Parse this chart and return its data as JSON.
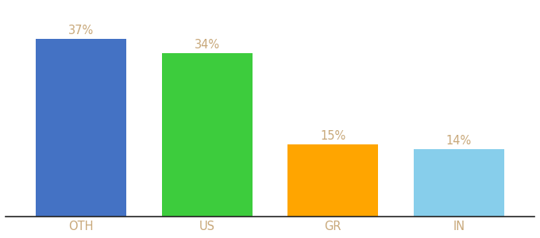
{
  "categories": [
    "OTH",
    "US",
    "GR",
    "IN"
  ],
  "values": [
    37,
    34,
    15,
    14
  ],
  "bar_colors": [
    "#4472c4",
    "#3dcc3d",
    "#ffa500",
    "#87ceeb"
  ],
  "value_labels": [
    "37%",
    "34%",
    "15%",
    "14%"
  ],
  "ylim": [
    0,
    44
  ],
  "background_color": "#ffffff",
  "bar_width": 0.72,
  "label_fontsize": 10.5,
  "tick_fontsize": 10.5,
  "label_color": "#c8a87a",
  "tick_color": "#c8a87a",
  "bottom_spine_color": "#222222",
  "figure_width": 6.8,
  "figure_height": 3.0
}
